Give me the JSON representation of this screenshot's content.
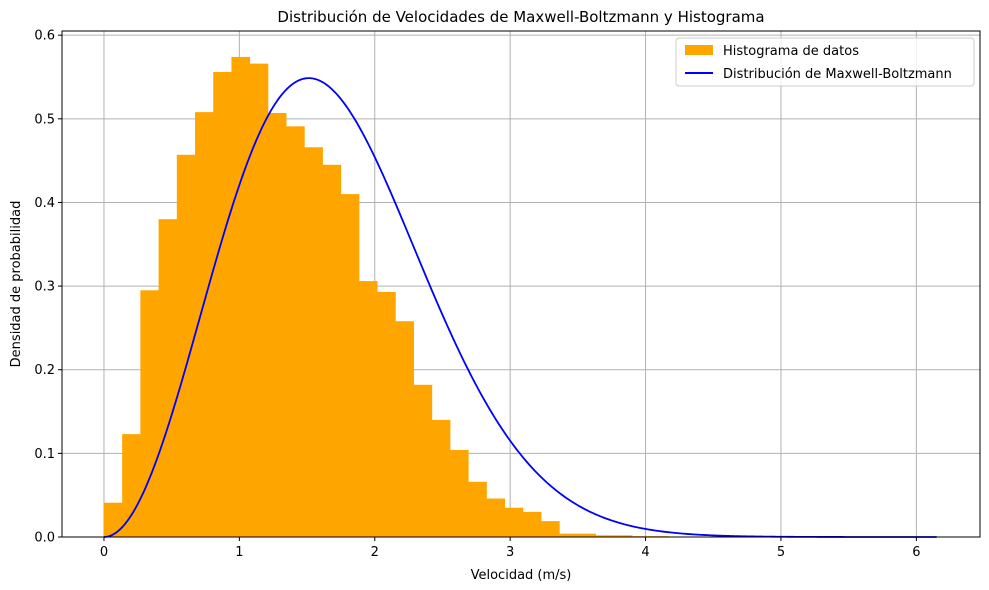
{
  "chart_data": {
    "type": "bar",
    "title": "Distribución de Velocidades de Maxwell-Boltzmann y Histograma",
    "xlabel": "Velocidad (m/s)",
    "ylabel": "Densidad de probabilidad",
    "xlim": [
      -0.31,
      6.47
    ],
    "ylim": [
      0,
      0.605
    ],
    "xticks": [
      0,
      1,
      2,
      3,
      4,
      5,
      6
    ],
    "yticks": [
      0.0,
      0.1,
      0.2,
      0.3,
      0.4,
      0.5,
      0.6
    ],
    "grid": true,
    "legend_position": "top-right",
    "histogram": {
      "name": "Histograma de datos",
      "color": "#FFA500",
      "bin_width": 0.1345,
      "bin_edges_start": 0.0,
      "values": [
        0.041,
        0.123,
        0.295,
        0.38,
        0.457,
        0.508,
        0.556,
        0.574,
        0.566,
        0.507,
        0.491,
        0.466,
        0.445,
        0.41,
        0.306,
        0.293,
        0.258,
        0.182,
        0.14,
        0.104,
        0.066,
        0.046,
        0.035,
        0.03,
        0.019,
        0.004,
        0.004,
        0.002,
        0.002,
        0.001,
        0.001
      ]
    },
    "curve": {
      "name": "Distribución de Maxwell-Boltzmann",
      "color": "#0000FF",
      "formula": "sqrt(2/pi) * v^2 / a^3 * exp(-v^2/(2 a^2))",
      "a": 1.07,
      "x_range": [
        0,
        6.15
      ]
    }
  }
}
